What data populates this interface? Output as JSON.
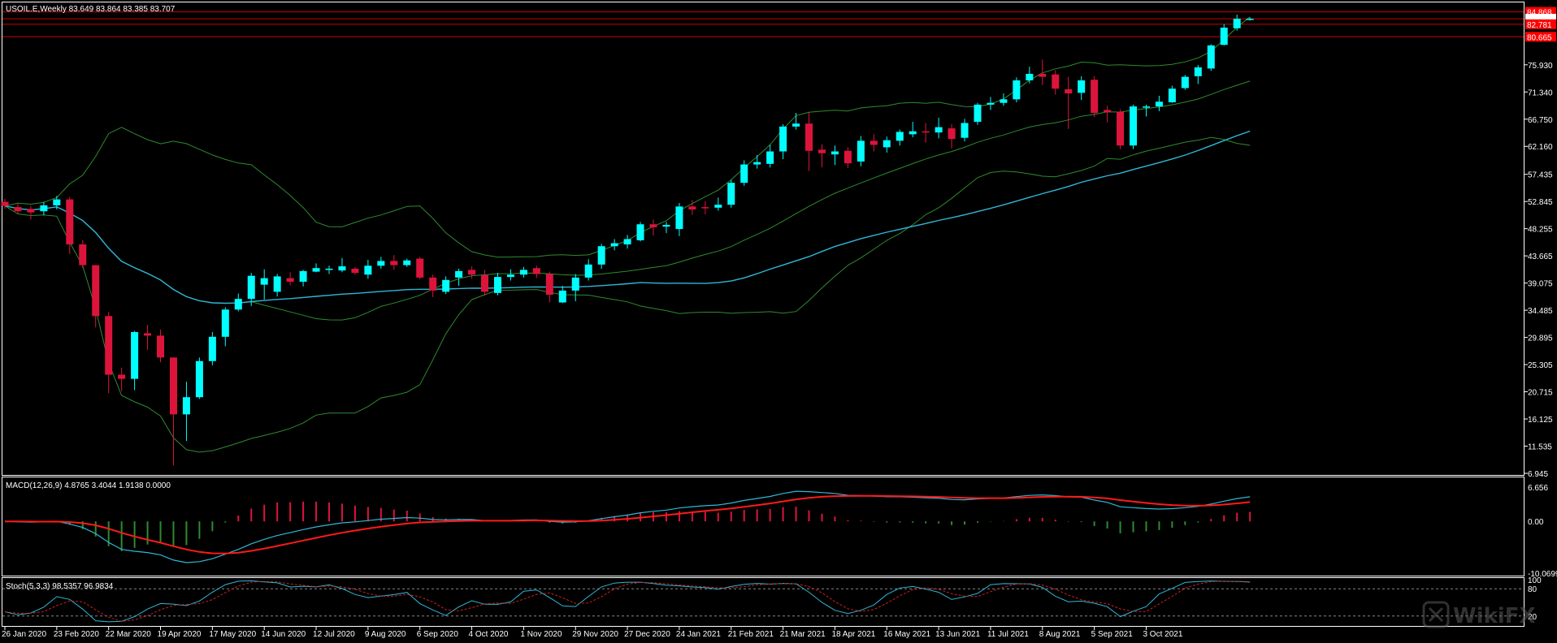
{
  "colors": {
    "background": "#000000",
    "bull_candle": "#00ffff",
    "bear_candle": "#dc143c",
    "grid_border": "#ffffff",
    "bb_line": "#2e8b2e",
    "ma_line": "#2fb7d6",
    "macd_line": "#2fb7d6",
    "signal_line": "#ff1a1a",
    "hist_pos": "#dc143c",
    "hist_neg": "#2e8b2e",
    "level_line": "#cc0000",
    "price_tag_bg": "#ff0000",
    "current_price_bg": "#ffffff",
    "stoch_main": "#2fb7d6",
    "stoch_signal": "#cc2020"
  },
  "header": {
    "symbol_line": "USOIL.E,Weekly  83.649 83.864 83.385 83.707"
  },
  "macd_panel": {
    "title": "MACD(12,26,9) 4.8765 3.4044 1.9138 0.0000",
    "y_ticks": [
      "6.656",
      "0.00",
      "-10.0699"
    ]
  },
  "stoch_panel": {
    "title": "Stoch(5,3,3) 98.5357 96.9834",
    "y_ticks": [
      "100",
      "80",
      "20"
    ]
  },
  "price_axis": {
    "ticks": [
      "75.930",
      "71.340",
      "66.750",
      "62.160",
      "57.435",
      "52.845",
      "48.255",
      "43.665",
      "39.075",
      "34.485",
      "29.895",
      "25.305",
      "20.715",
      "16.125",
      "11.535",
      "6.945"
    ],
    "level_tags": [
      "84.868",
      "83.707",
      "82.781",
      "80.665"
    ],
    "current_price": "83.707"
  },
  "time_axis": {
    "labels": [
      "26 Jan 2020",
      "23 Feb 2020",
      "22 Mar 2020",
      "19 Apr 2020",
      "17 May 2020",
      "14 Jun 2020",
      "12 Jul 2020",
      "9 Aug 2020",
      "6 Sep 2020",
      "4 Oct 2020",
      "1 Nov 2020",
      "29 Nov 2020",
      "27 Dec 2020",
      "24 Jan 2021",
      "21 Feb 2021",
      "21 Mar 2021",
      "18 Apr 2021",
      "16 May 2021",
      "13 Jun 2021",
      "11 Jul 2021",
      "8 Aug 2021",
      "5 Sep 2021",
      "3 Oct 2021"
    ]
  },
  "watermark": {
    "text": "WikiFX"
  },
  "chart_data": {
    "type": "candlestick",
    "symbol": "USOIL.E",
    "timeframe": "Weekly",
    "ylim": [
      6.945,
      85.5
    ],
    "level_lines": [
      84.868,
      83.707,
      82.781,
      80.665
    ],
    "candles": [
      [
        52.8,
        52.1,
        53.3,
        51.6
      ],
      [
        51.9,
        51.2,
        52.5,
        50.8
      ],
      [
        51.6,
        51.0,
        52.1,
        49.8
      ],
      [
        51.2,
        52.2,
        52.8,
        50.5
      ],
      [
        52.2,
        53.2,
        53.8,
        51.5
      ],
      [
        53.2,
        45.6,
        53.6,
        44.0
      ],
      [
        45.6,
        42.1,
        46.3,
        41.6
      ],
      [
        42.1,
        33.5,
        37.0,
        31.6
      ],
      [
        33.5,
        23.6,
        34.2,
        20.5
      ],
      [
        23.6,
        22.9,
        24.8,
        20.8
      ],
      [
        22.9,
        30.8,
        31.0,
        21.0
      ],
      [
        30.6,
        30.2,
        32.0,
        27.8
      ],
      [
        30.2,
        26.5,
        31.2,
        25.7
      ],
      [
        26.5,
        16.9,
        26.5,
        8.3
      ],
      [
        16.9,
        19.8,
        22.4,
        12.4
      ],
      [
        19.8,
        25.9,
        26.5,
        19.5
      ],
      [
        25.9,
        30.0,
        30.8,
        25.2
      ],
      [
        30.0,
        34.6,
        35.0,
        28.4
      ],
      [
        34.6,
        36.4,
        37.3,
        34.3
      ],
      [
        36.4,
        40.3,
        40.8,
        35.2
      ],
      [
        38.8,
        39.9,
        41.4,
        36.3
      ],
      [
        37.6,
        40.2,
        40.6,
        36.8
      ],
      [
        39.9,
        39.3,
        40.9,
        38.7
      ],
      [
        39.3,
        41.1,
        41.3,
        38.5
      ],
      [
        41.0,
        41.6,
        42.4,
        40.9
      ],
      [
        41.3,
        41.5,
        42.0,
        40.6
      ],
      [
        41.2,
        41.9,
        43.3,
        40.9
      ],
      [
        41.5,
        40.8,
        41.8,
        40.5
      ],
      [
        40.5,
        42.0,
        43.0,
        39.8
      ],
      [
        42.0,
        42.8,
        43.5,
        41.5
      ],
      [
        42.8,
        42.1,
        43.8,
        41.3
      ],
      [
        42.1,
        42.9,
        43.2,
        41.8
      ],
      [
        43.2,
        40.0,
        43.5,
        39.7
      ],
      [
        40.0,
        37.8,
        40.5,
        36.7
      ],
      [
        37.6,
        39.6,
        40.2,
        37.2
      ],
      [
        40.0,
        41.1,
        41.5,
        38.6
      ],
      [
        41.3,
        40.5,
        41.9,
        39.8
      ],
      [
        40.4,
        37.6,
        41.3,
        36.9
      ],
      [
        37.4,
        40.1,
        40.8,
        37.0
      ],
      [
        40.1,
        40.5,
        41.4,
        39.5
      ],
      [
        40.5,
        41.3,
        41.8,
        40.0
      ],
      [
        41.6,
        40.6,
        42.0,
        39.9
      ],
      [
        40.6,
        37.1,
        41.0,
        35.8
      ],
      [
        35.8,
        37.8,
        38.6,
        35.7
      ],
      [
        37.8,
        40.0,
        40.6,
        36.0
      ],
      [
        40.0,
        42.2,
        43.1,
        39.5
      ],
      [
        42.2,
        45.3,
        45.7,
        41.5
      ],
      [
        45.3,
        45.8,
        46.5,
        44.6
      ],
      [
        45.6,
        46.5,
        47.2,
        44.9
      ],
      [
        46.3,
        49.0,
        49.4,
        46.1
      ],
      [
        49.0,
        48.5,
        49.8,
        47.1
      ],
      [
        48.6,
        48.9,
        49.4,
        47.5
      ],
      [
        48.2,
        52.0,
        52.6,
        47.0
      ],
      [
        52.0,
        51.5,
        53.1,
        50.6
      ],
      [
        51.9,
        51.8,
        52.9,
        50.7
      ],
      [
        51.8,
        52.3,
        53.5,
        51.3
      ],
      [
        52.3,
        56.0,
        56.5,
        51.8
      ],
      [
        56.0,
        59.1,
        59.8,
        55.5
      ],
      [
        59.1,
        59.5,
        60.7,
        58.4
      ],
      [
        59.2,
        61.3,
        62.4,
        58.6
      ],
      [
        61.3,
        65.5,
        65.9,
        60.0
      ],
      [
        65.5,
        66.0,
        67.8,
        65.0
      ],
      [
        66.0,
        61.4,
        67.9,
        58.0
      ],
      [
        61.6,
        61.0,
        62.5,
        58.6
      ],
      [
        60.8,
        61.3,
        62.3,
        59.0
      ],
      [
        61.4,
        59.3,
        62.0,
        58.5
      ],
      [
        59.6,
        63.1,
        63.9,
        58.8
      ],
      [
        63.1,
        62.4,
        64.2,
        61.3
      ],
      [
        62.0,
        63.2,
        63.8,
        61.1
      ],
      [
        63.1,
        64.6,
        65.0,
        62.3
      ],
      [
        64.2,
        64.7,
        66.3,
        63.7
      ],
      [
        64.7,
        64.5,
        66.1,
        62.8
      ],
      [
        64.5,
        65.4,
        67.0,
        63.5
      ],
      [
        65.2,
        63.4,
        65.9,
        61.8
      ],
      [
        63.6,
        66.1,
        66.8,
        63.0
      ],
      [
        66.3,
        69.2,
        69.5,
        65.8
      ],
      [
        69.2,
        69.5,
        70.5,
        68.3
      ],
      [
        69.5,
        70.1,
        71.1,
        69.0
      ],
      [
        70.1,
        73.3,
        73.8,
        69.6
      ],
      [
        73.3,
        74.4,
        75.6,
        72.8
      ],
      [
        74.4,
        73.9,
        76.8,
        72.5
      ],
      [
        74.3,
        71.9,
        75.0,
        70.9
      ],
      [
        71.8,
        71.1,
        73.9,
        65.1
      ],
      [
        71.2,
        73.3,
        74.0,
        70.0
      ],
      [
        73.4,
        67.8,
        74.0,
        67.1
      ],
      [
        68.3,
        67.9,
        69.0,
        66.2
      ],
      [
        68.0,
        62.3,
        68.4,
        61.7
      ],
      [
        62.3,
        68.9,
        69.2,
        61.7
      ],
      [
        68.9,
        68.9,
        69.2,
        67.2
      ],
      [
        68.9,
        69.7,
        70.7,
        68.1
      ],
      [
        69.6,
        71.9,
        72.4,
        69.5
      ],
      [
        72.0,
        73.9,
        74.2,
        71.7
      ],
      [
        74.0,
        75.5,
        75.9,
        72.7
      ],
      [
        75.3,
        79.2,
        79.4,
        74.9
      ],
      [
        79.3,
        82.2,
        82.8,
        79.2
      ],
      [
        82.1,
        83.7,
        84.4,
        81.7
      ],
      [
        83.6,
        83.7,
        83.9,
        83.4
      ]
    ]
  }
}
